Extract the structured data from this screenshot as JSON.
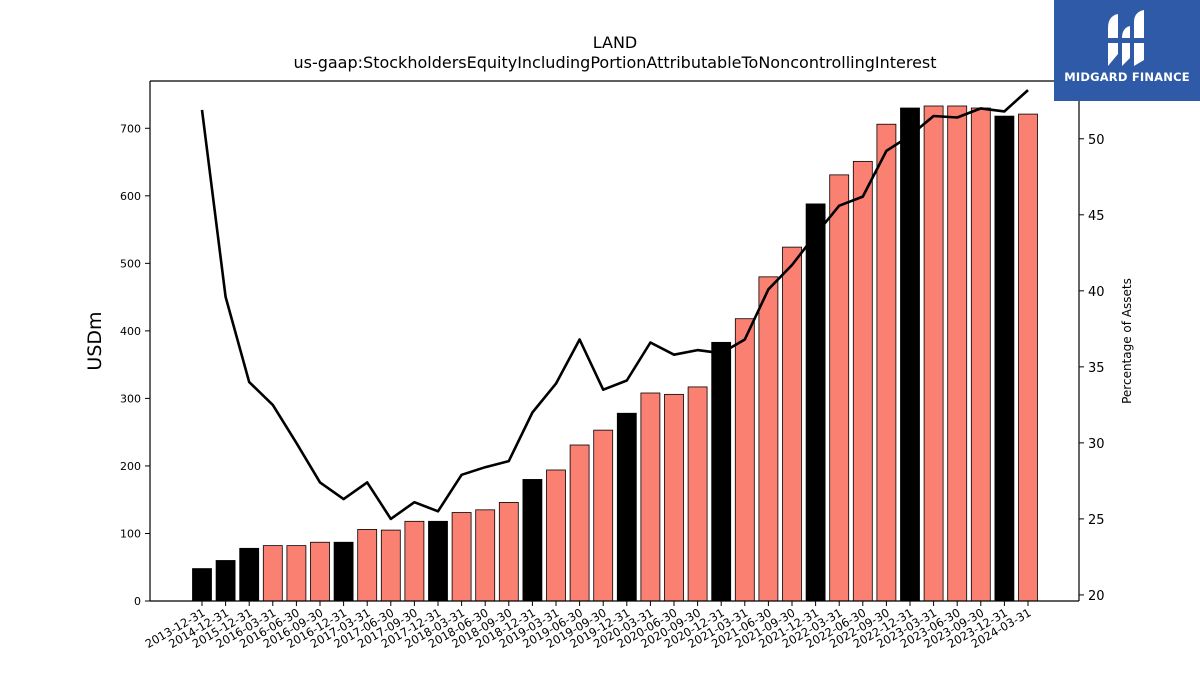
{
  "logo": {
    "text": "MIDGARD FINANCE",
    "icon": "midgard-logo-icon",
    "bg_color": "#2f5aa8"
  },
  "chart_data": {
    "type": "bar",
    "title": "LAND",
    "subtitle": "us-gaap:StockholdersEquityIncludingPortionAttributableToNoncontrollingInterest",
    "ylabel": "USDm",
    "y2label": "Percentage of Assets",
    "ylim": [
      0,
      770
    ],
    "y2lim": [
      19.6,
      53.8
    ],
    "yticks": [
      0,
      100,
      200,
      300,
      400,
      500,
      600,
      700
    ],
    "y2ticks": [
      20,
      25,
      30,
      35,
      40,
      45,
      50
    ],
    "colors": {
      "annual": "#000000",
      "quarterly": "#fa8072",
      "line": "#000000"
    },
    "categories": [
      "2013-12-31",
      "2014-12-31",
      "2015-12-31",
      "2016-03-31",
      "2016-06-30",
      "2016-09-30",
      "2016-12-31",
      "2017-03-31",
      "2017-06-30",
      "2017-09-30",
      "2017-12-31",
      "2018-03-31",
      "2018-06-30",
      "2018-09-30",
      "2018-12-31",
      "2019-03-31",
      "2019-06-30",
      "2019-09-30",
      "2019-12-31",
      "2020-03-31",
      "2020-06-30",
      "2020-09-30",
      "2020-12-31",
      "2021-03-31",
      "2021-06-30",
      "2021-09-30",
      "2021-12-31",
      "2022-03-31",
      "2022-06-30",
      "2022-09-30",
      "2022-12-31",
      "2023-03-31",
      "2023-06-30",
      "2023-09-30",
      "2023-12-31",
      "2024-03-31"
    ],
    "series": [
      {
        "kind": "bar",
        "values": [
          48,
          60,
          78,
          82,
          82,
          87,
          87,
          106,
          105,
          118,
          118,
          131,
          135,
          146,
          180,
          194,
          231,
          253,
          278,
          308,
          306,
          317,
          383,
          418,
          480,
          524,
          588,
          631,
          651,
          706,
          730,
          733,
          733,
          730,
          718,
          721
        ],
        "annual": [
          true,
          true,
          true,
          false,
          false,
          false,
          true,
          false,
          false,
          false,
          true,
          false,
          false,
          false,
          true,
          false,
          false,
          false,
          true,
          false,
          false,
          false,
          true,
          false,
          false,
          false,
          true,
          false,
          false,
          false,
          true,
          false,
          false,
          false,
          true,
          false
        ]
      },
      {
        "kind": "line",
        "axis": "right",
        "values": [
          51.9,
          39.6,
          34.0,
          32.5,
          30.0,
          27.4,
          26.3,
          27.4,
          25.0,
          26.1,
          25.5,
          27.9,
          28.4,
          28.8,
          32.0,
          33.9,
          36.8,
          33.5,
          34.1,
          36.6,
          35.8,
          36.1,
          35.9,
          36.8,
          40.1,
          41.7,
          43.7,
          45.6,
          46.2,
          49.2,
          50.2,
          51.5,
          51.4,
          52.0,
          51.8,
          53.2
        ]
      }
    ]
  }
}
